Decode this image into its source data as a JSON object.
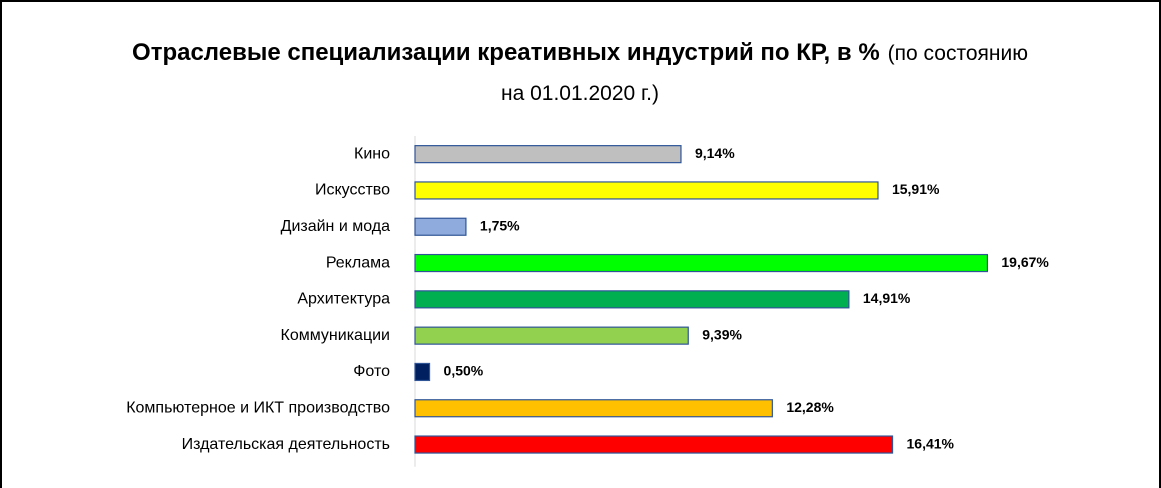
{
  "chart_data": {
    "type": "bar",
    "orientation": "horizontal",
    "title": "Отраслевые специализации креативных индустрий по КР, в %",
    "subtitle": "(по состоянию на 01.01.2020 г.)",
    "categories": [
      "Кино",
      "Искусство",
      "Дизайн и мода",
      "Реклама",
      "Архитектура",
      "Коммуникации",
      "Фото",
      "Компьютерное и ИКТ производство",
      "Издательская деятельность"
    ],
    "values": [
      9.14,
      15.91,
      1.75,
      19.67,
      14.91,
      9.39,
      0.5,
      12.28,
      16.41
    ],
    "value_labels": [
      "9,14%",
      "15,91%",
      "1,75%",
      "19,67%",
      "14,91%",
      "9,39%",
      "0,50%",
      "12,28%",
      "16,41%"
    ],
    "colors": [
      "#bfbfbf",
      "#ffff00",
      "#8faadc",
      "#00ff00",
      "#00b050",
      "#92d050",
      "#002060",
      "#ffc000",
      "#ff0000"
    ],
    "xlim": [
      0,
      20
    ]
  }
}
